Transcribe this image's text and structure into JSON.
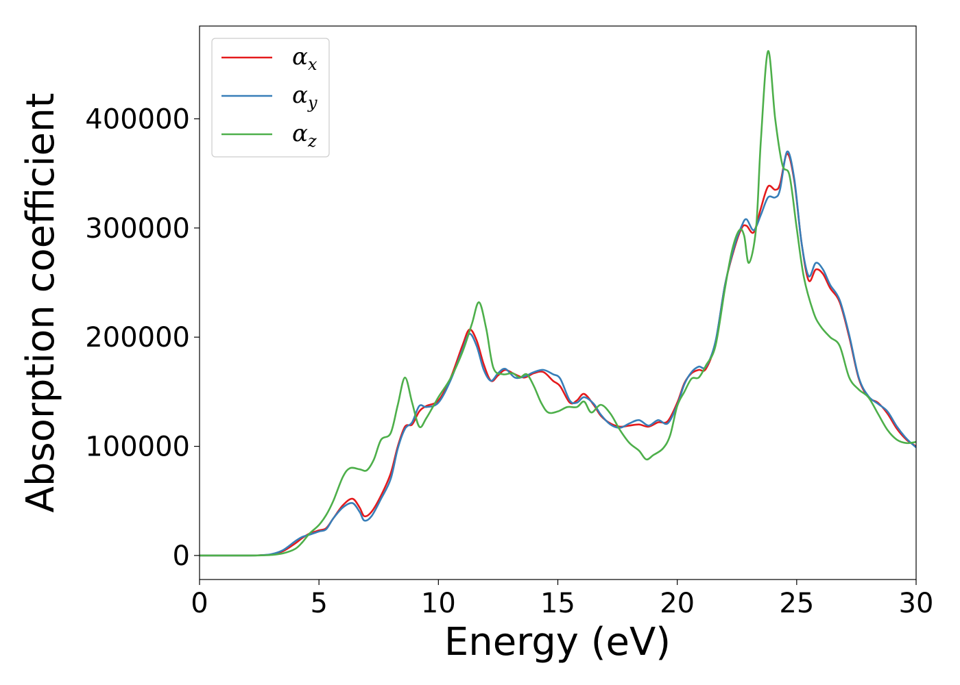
{
  "chart_data": {
    "type": "line",
    "xlabel": "Energy (eV)",
    "ylabel": "Absorption coefficient",
    "xlim": [
      0,
      30
    ],
    "ylim": [
      -22000,
      485000
    ],
    "xticks": [
      "0",
      "5",
      "10",
      "15",
      "20",
      "25",
      "30"
    ],
    "yticks": [
      "0",
      "100000",
      "200000",
      "300000",
      "400000"
    ],
    "legend_position": "top-left",
    "grid": false,
    "series": [
      {
        "name": "α",
        "subscript": "x",
        "color": "#e41a1c",
        "points": [
          [
            0,
            0
          ],
          [
            1,
            0
          ],
          [
            2,
            0
          ],
          [
            2.5,
            200
          ],
          [
            3,
            1000
          ],
          [
            3.5,
            4000
          ],
          [
            4,
            11000
          ],
          [
            4.3,
            16000
          ],
          [
            4.6,
            20000
          ],
          [
            5,
            23000
          ],
          [
            5.3,
            25000
          ],
          [
            5.6,
            34000
          ],
          [
            6,
            46000
          ],
          [
            6.4,
            52000
          ],
          [
            6.7,
            44000
          ],
          [
            6.9,
            36000
          ],
          [
            7.2,
            40000
          ],
          [
            7.6,
            55000
          ],
          [
            8,
            75000
          ],
          [
            8.3,
            100000
          ],
          [
            8.6,
            118000
          ],
          [
            8.9,
            120000
          ],
          [
            9.2,
            132000
          ],
          [
            9.5,
            137000
          ],
          [
            10,
            142000
          ],
          [
            10.5,
            162000
          ],
          [
            11,
            192000
          ],
          [
            11.3,
            207000
          ],
          [
            11.6,
            197000
          ],
          [
            11.9,
            175000
          ],
          [
            12.2,
            160000
          ],
          [
            12.5,
            165000
          ],
          [
            12.8,
            170000
          ],
          [
            13.2,
            166000
          ],
          [
            13.6,
            163000
          ],
          [
            14,
            167000
          ],
          [
            14.4,
            168000
          ],
          [
            14.8,
            160000
          ],
          [
            15.1,
            155000
          ],
          [
            15.5,
            140000
          ],
          [
            15.8,
            142000
          ],
          [
            16.1,
            148000
          ],
          [
            16.5,
            138000
          ],
          [
            16.8,
            128000
          ],
          [
            17.2,
            121000
          ],
          [
            17.6,
            118000
          ],
          [
            18,
            119000
          ],
          [
            18.4,
            120000
          ],
          [
            18.8,
            118000
          ],
          [
            19.2,
            122000
          ],
          [
            19.6,
            123000
          ],
          [
            20,
            140000
          ],
          [
            20.3,
            158000
          ],
          [
            20.6,
            167000
          ],
          [
            20.9,
            170000
          ],
          [
            21.2,
            171000
          ],
          [
            21.6,
            195000
          ],
          [
            22,
            248000
          ],
          [
            22.4,
            282000
          ],
          [
            22.7,
            300000
          ],
          [
            22.9,
            302000
          ],
          [
            23.2,
            296000
          ],
          [
            23.5,
            318000
          ],
          [
            23.8,
            338000
          ],
          [
            24.1,
            335000
          ],
          [
            24.3,
            340000
          ],
          [
            24.6,
            368000
          ],
          [
            24.9,
            343000
          ],
          [
            25.2,
            287000
          ],
          [
            25.5,
            252000
          ],
          [
            25.8,
            262000
          ],
          [
            26.1,
            258000
          ],
          [
            26.4,
            245000
          ],
          [
            26.8,
            232000
          ],
          [
            27.2,
            200000
          ],
          [
            27.6,
            162000
          ],
          [
            28,
            145000
          ],
          [
            28.4,
            140000
          ],
          [
            28.8,
            130000
          ],
          [
            29.2,
            116000
          ],
          [
            29.6,
            106000
          ],
          [
            30,
            100000
          ]
        ]
      },
      {
        "name": "α",
        "subscript": "y",
        "color": "#377eb8",
        "points": [
          [
            0,
            0
          ],
          [
            1,
            0
          ],
          [
            2,
            0
          ],
          [
            2.5,
            200
          ],
          [
            3,
            1200
          ],
          [
            3.5,
            5000
          ],
          [
            4,
            13000
          ],
          [
            4.3,
            17000
          ],
          [
            4.6,
            19000
          ],
          [
            5,
            22000
          ],
          [
            5.3,
            24000
          ],
          [
            5.6,
            34000
          ],
          [
            6,
            44000
          ],
          [
            6.4,
            48000
          ],
          [
            6.7,
            40000
          ],
          [
            6.9,
            32000
          ],
          [
            7.2,
            36000
          ],
          [
            7.6,
            52000
          ],
          [
            8,
            70000
          ],
          [
            8.3,
            98000
          ],
          [
            8.6,
            116000
          ],
          [
            8.9,
            122000
          ],
          [
            9.2,
            137000
          ],
          [
            9.5,
            136000
          ],
          [
            10,
            140000
          ],
          [
            10.5,
            160000
          ],
          [
            11,
            188000
          ],
          [
            11.3,
            203000
          ],
          [
            11.6,
            192000
          ],
          [
            11.9,
            170000
          ],
          [
            12.2,
            160000
          ],
          [
            12.5,
            167000
          ],
          [
            12.8,
            171000
          ],
          [
            13.2,
            163000
          ],
          [
            13.6,
            164000
          ],
          [
            14,
            168000
          ],
          [
            14.4,
            170000
          ],
          [
            14.8,
            166000
          ],
          [
            15.1,
            162000
          ],
          [
            15.5,
            142000
          ],
          [
            15.8,
            140000
          ],
          [
            16.1,
            145000
          ],
          [
            16.5,
            139000
          ],
          [
            16.8,
            129000
          ],
          [
            17.2,
            120000
          ],
          [
            17.6,
            117000
          ],
          [
            18,
            121000
          ],
          [
            18.4,
            124000
          ],
          [
            18.8,
            119000
          ],
          [
            19.2,
            124000
          ],
          [
            19.6,
            121000
          ],
          [
            20,
            138000
          ],
          [
            20.3,
            157000
          ],
          [
            20.6,
            168000
          ],
          [
            20.9,
            173000
          ],
          [
            21.2,
            173000
          ],
          [
            21.6,
            196000
          ],
          [
            22,
            248000
          ],
          [
            22.4,
            284000
          ],
          [
            22.7,
            302000
          ],
          [
            22.9,
            308000
          ],
          [
            23.2,
            298000
          ],
          [
            23.5,
            312000
          ],
          [
            23.8,
            328000
          ],
          [
            24.1,
            328000
          ],
          [
            24.3,
            335000
          ],
          [
            24.6,
            370000
          ],
          [
            24.9,
            345000
          ],
          [
            25.2,
            287000
          ],
          [
            25.5,
            256000
          ],
          [
            25.8,
            268000
          ],
          [
            26.1,
            262000
          ],
          [
            26.4,
            248000
          ],
          [
            26.8,
            234000
          ],
          [
            27.2,
            202000
          ],
          [
            27.6,
            163000
          ],
          [
            28,
            146000
          ],
          [
            28.4,
            139000
          ],
          [
            28.8,
            132000
          ],
          [
            29.2,
            118000
          ],
          [
            29.6,
            107000
          ],
          [
            30,
            99000
          ]
        ]
      },
      {
        "name": "α",
        "subscript": "z",
        "color": "#4daf4a",
        "points": [
          [
            0,
            0
          ],
          [
            1,
            0
          ],
          [
            2,
            0
          ],
          [
            2.5,
            100
          ],
          [
            3,
            500
          ],
          [
            3.5,
            2000
          ],
          [
            4,
            6000
          ],
          [
            4.3,
            12000
          ],
          [
            4.6,
            20000
          ],
          [
            5,
            28000
          ],
          [
            5.3,
            37000
          ],
          [
            5.6,
            50000
          ],
          [
            6,
            72000
          ],
          [
            6.3,
            80000
          ],
          [
            6.7,
            79000
          ],
          [
            7,
            78000
          ],
          [
            7.3,
            88000
          ],
          [
            7.6,
            106000
          ],
          [
            8,
            112000
          ],
          [
            8.3,
            138000
          ],
          [
            8.6,
            163000
          ],
          [
            8.9,
            140000
          ],
          [
            9.2,
            118000
          ],
          [
            9.5,
            126000
          ],
          [
            10,
            145000
          ],
          [
            10.5,
            162000
          ],
          [
            11,
            186000
          ],
          [
            11.4,
            212000
          ],
          [
            11.7,
            232000
          ],
          [
            12,
            208000
          ],
          [
            12.3,
            172000
          ],
          [
            12.7,
            166000
          ],
          [
            13.1,
            167000
          ],
          [
            13.4,
            163000
          ],
          [
            13.7,
            166000
          ],
          [
            14,
            155000
          ],
          [
            14.3,
            140000
          ],
          [
            14.6,
            131000
          ],
          [
            15,
            132000
          ],
          [
            15.4,
            136000
          ],
          [
            15.8,
            136000
          ],
          [
            16.1,
            141000
          ],
          [
            16.4,
            131000
          ],
          [
            16.8,
            138000
          ],
          [
            17.2,
            130000
          ],
          [
            17.6,
            115000
          ],
          [
            18,
            103000
          ],
          [
            18.4,
            96000
          ],
          [
            18.7,
            88000
          ],
          [
            19,
            92000
          ],
          [
            19.4,
            98000
          ],
          [
            19.7,
            110000
          ],
          [
            20,
            137000
          ],
          [
            20.3,
            150000
          ],
          [
            20.6,
            162000
          ],
          [
            20.9,
            163000
          ],
          [
            21.2,
            174000
          ],
          [
            21.6,
            192000
          ],
          [
            22,
            245000
          ],
          [
            22.3,
            280000
          ],
          [
            22.6,
            298000
          ],
          [
            22.8,
            293000
          ],
          [
            23,
            268000
          ],
          [
            23.3,
            300000
          ],
          [
            23.5,
            380000
          ],
          [
            23.8,
            462000
          ],
          [
            24.1,
            400000
          ],
          [
            24.4,
            358000
          ],
          [
            24.7,
            348000
          ],
          [
            25,
            300000
          ],
          [
            25.3,
            255000
          ],
          [
            25.7,
            223000
          ],
          [
            26,
            210000
          ],
          [
            26.4,
            200000
          ],
          [
            26.8,
            192000
          ],
          [
            27.2,
            163000
          ],
          [
            27.6,
            152000
          ],
          [
            28,
            145000
          ],
          [
            28.4,
            130000
          ],
          [
            28.8,
            115000
          ],
          [
            29.2,
            106000
          ],
          [
            29.6,
            103000
          ],
          [
            30,
            104000
          ]
        ]
      }
    ]
  }
}
